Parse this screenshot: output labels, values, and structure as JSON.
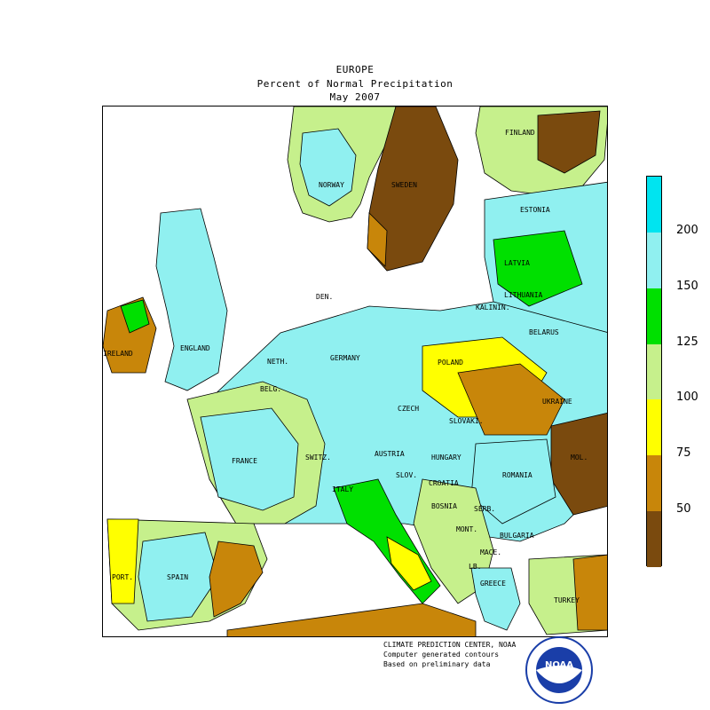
{
  "header": {
    "title": "EUROPE",
    "subtitle": "Percent of Normal Precipitation",
    "period": "May 2007"
  },
  "map": {
    "country_labels": [
      {
        "id": "finland",
        "text": "FINLAND"
      },
      {
        "id": "norway",
        "text": "NORWAY"
      },
      {
        "id": "sweden",
        "text": "SWEDEN"
      },
      {
        "id": "estonia",
        "text": "ESTONIA"
      },
      {
        "id": "latvia",
        "text": "LATVIA"
      },
      {
        "id": "lithuania",
        "text": "LITHUANIA"
      },
      {
        "id": "kaliningrad",
        "text": "KALININ."
      },
      {
        "id": "belarus",
        "text": "BELARUS"
      },
      {
        "id": "denmark",
        "text": "DEN."
      },
      {
        "id": "ireland",
        "text": "IRELAND"
      },
      {
        "id": "england",
        "text": "ENGLAND"
      },
      {
        "id": "netherlands",
        "text": "NETH."
      },
      {
        "id": "germany",
        "text": "GERMANY"
      },
      {
        "id": "poland",
        "text": "POLAND"
      },
      {
        "id": "belgium",
        "text": "BELG."
      },
      {
        "id": "czech",
        "text": "CZECH"
      },
      {
        "id": "slovakia",
        "text": "SLOVAKI."
      },
      {
        "id": "ukraine",
        "text": "UKRAINE"
      },
      {
        "id": "moldova",
        "text": "MOL."
      },
      {
        "id": "france",
        "text": "FRANCE"
      },
      {
        "id": "switzerland",
        "text": "SWITZ."
      },
      {
        "id": "austria",
        "text": "AUSTRIA"
      },
      {
        "id": "hungary",
        "text": "HUNGARY"
      },
      {
        "id": "romania",
        "text": "ROMANIA"
      },
      {
        "id": "slovenia",
        "text": "SLOV."
      },
      {
        "id": "croatia",
        "text": "CROATIA"
      },
      {
        "id": "italy",
        "text": "ITALY"
      },
      {
        "id": "bosnia",
        "text": "BOSNIA"
      },
      {
        "id": "serbia",
        "text": "SERB."
      },
      {
        "id": "montenegro",
        "text": "MONT."
      },
      {
        "id": "bulgaria",
        "text": "BULGARIA"
      },
      {
        "id": "macedonia",
        "text": "MACE."
      },
      {
        "id": "albania",
        "text": "LB."
      },
      {
        "id": "greece",
        "text": "GREECE"
      },
      {
        "id": "portugal",
        "text": "PORT."
      },
      {
        "id": "spain",
        "text": "SPAIN"
      },
      {
        "id": "turkey",
        "text": "TURKEY"
      }
    ],
    "colors": {
      "lt50": "#7a4a0e",
      "50_75": "#c8860a",
      "75_100": "#ffff00",
      "100_125": "#c6f08c",
      "125_150": "#00e000",
      "150_200": "#90f0f0",
      "gt200": "#00e4f0"
    }
  },
  "legend": {
    "ticks": [
      "50",
      "75",
      "100",
      "125",
      "150",
      "200"
    ],
    "bands": [
      {
        "color": "#00e4f0",
        "range": ">200"
      },
      {
        "color": "#90f0f0",
        "range": "150-200"
      },
      {
        "color": "#00e000",
        "range": "125-150"
      },
      {
        "color": "#c6f08c",
        "range": "100-125"
      },
      {
        "color": "#ffff00",
        "range": "75-100"
      },
      {
        "color": "#c8860a",
        "range": "50-75"
      },
      {
        "color": "#7a4a0e",
        "range": "<50"
      }
    ]
  },
  "credits": {
    "line1": "CLIMATE PREDICTION CENTER, NOAA",
    "line2": "Computer generated contours",
    "line3": "Based on preliminary data",
    "logo_text": "NOAA"
  }
}
